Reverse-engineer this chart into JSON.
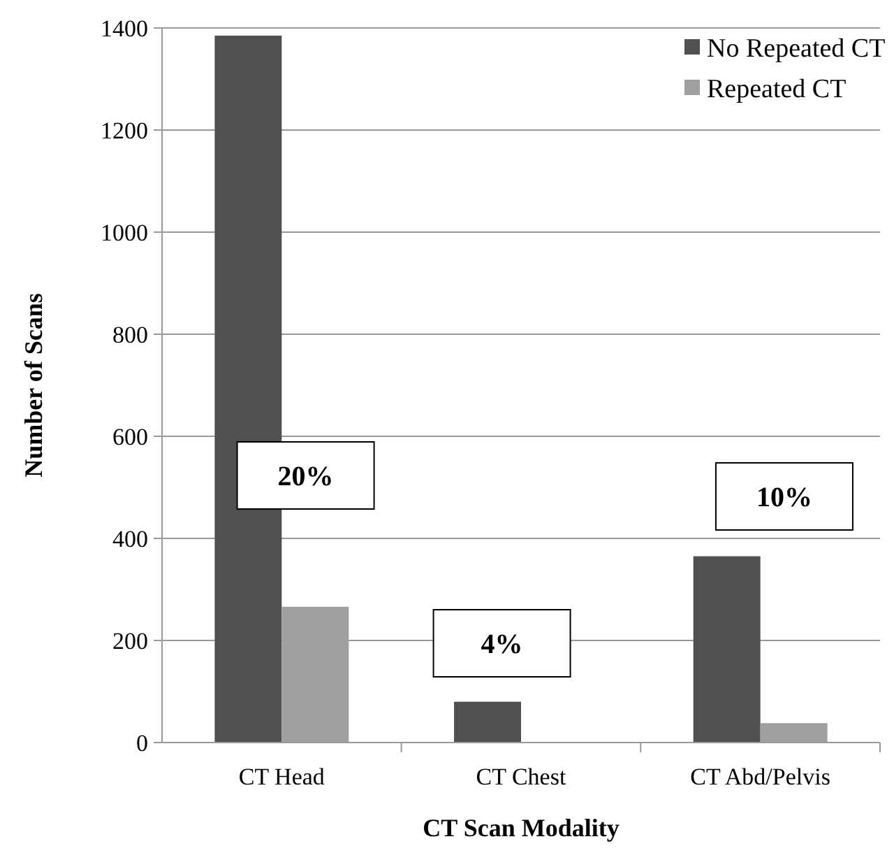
{
  "chart_data": {
    "type": "bar",
    "xlabel": "CT Scan Modality",
    "ylabel": "Number of Scans",
    "categories": [
      "CT Head",
      "CT Chest",
      "CT Abd/Pelvis"
    ],
    "series": [
      {
        "name": "No Repeated CT",
        "color": "#505050",
        "values": [
          1385,
          80,
          365
        ]
      },
      {
        "name": "Repeated CT",
        "color": "#a0a0a0",
        "values": [
          266,
          0,
          38
        ]
      }
    ],
    "ylim": [
      0,
      1400
    ],
    "yticks": [
      0,
      200,
      400,
      600,
      800,
      1000,
      1200,
      1400
    ],
    "grid": "y",
    "legend": "top right",
    "annotations": [
      "20%",
      "4%",
      "10%"
    ]
  }
}
